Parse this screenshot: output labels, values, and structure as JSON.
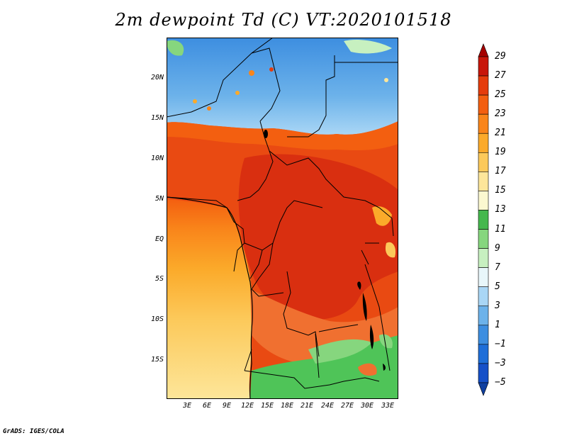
{
  "title": "2m dewpoint Td (C) VT:2020101518",
  "credit": "GrADS: IGES/COLA",
  "map": {
    "lat_labels": [
      "20N",
      "15N",
      "10N",
      "5N",
      "EQ",
      "5S",
      "10S",
      "15S"
    ],
    "lon_labels": [
      "3E",
      "6E",
      "9E",
      "12E",
      "15E",
      "18E",
      "21E",
      "24E",
      "27E",
      "30E",
      "33E"
    ]
  },
  "legend": {
    "labels": [
      "29",
      "27",
      "25",
      "23",
      "21",
      "19",
      "17",
      "15",
      "13",
      "11",
      "9",
      "7",
      "5",
      "3",
      "1",
      "−1",
      "−3",
      "−5"
    ],
    "colors": [
      "#a50000",
      "#c8160a",
      "#e53c0c",
      "#f35f10",
      "#f9851a",
      "#fbaa2a",
      "#fcc95a",
      "#fde69a",
      "#fbf8d0",
      "#45b84e",
      "#86d67e",
      "#c7f0c0",
      "#e8f6fa",
      "#a9d6f5",
      "#6cb2ea",
      "#3d8ee0",
      "#1e6ed8",
      "#1550c8",
      "#0f3fa0"
    ]
  }
}
